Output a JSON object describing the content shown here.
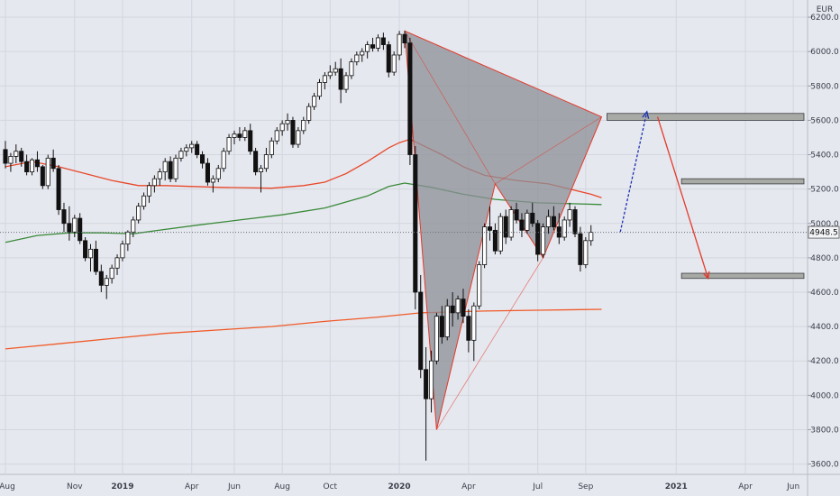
{
  "chart_data": {
    "type": "candlestick",
    "currency_label": "EUR",
    "last_price_label": "4948.5",
    "last_price": 4948.5,
    "ylim": [
      3540,
      6300
    ],
    "y_ticks": [
      3600,
      3800,
      4000,
      4200,
      4400,
      4600,
      4800,
      5000,
      5200,
      5400,
      5600,
      5800,
      6000,
      6200
    ],
    "y_tick_labels": [
      "3600.0",
      "3800.0",
      "4000.0",
      "4200.0",
      "4400.0",
      "4600.0",
      "4800.0",
      "5000.0",
      "5200.0",
      "5400.0",
      "5600.0",
      "5800.0",
      "6000.0",
      "6200.0"
    ],
    "x_ticks": [
      {
        "label": "Aug",
        "week": 0,
        "bold": false
      },
      {
        "label": "Nov",
        "week": 13,
        "bold": false
      },
      {
        "label": "2019",
        "week": 22,
        "bold": true
      },
      {
        "label": "Apr",
        "week": 35,
        "bold": false
      },
      {
        "label": "Jun",
        "week": 43,
        "bold": false
      },
      {
        "label": "Aug",
        "week": 52,
        "bold": false
      },
      {
        "label": "Oct",
        "week": 61,
        "bold": false
      },
      {
        "label": "2020",
        "week": 74,
        "bold": true
      },
      {
        "label": "Apr",
        "week": 87,
        "bold": false
      },
      {
        "label": "Jul",
        "week": 100,
        "bold": false
      },
      {
        "label": "Sep",
        "week": 109,
        "bold": false
      },
      {
        "label": "2021",
        "week": 126,
        "bold": true
      },
      {
        "label": "Apr",
        "week": 139,
        "bold": false
      },
      {
        "label": "Jun",
        "week": 148,
        "bold": false
      }
    ],
    "x_range_weeks": [
      0,
      150
    ],
    "candles": [
      [
        5430,
        5480,
        5320,
        5350
      ],
      [
        5350,
        5410,
        5300,
        5390
      ],
      [
        5390,
        5460,
        5350,
        5420
      ],
      [
        5420,
        5440,
        5330,
        5360
      ],
      [
        5360,
        5400,
        5280,
        5300
      ],
      [
        5300,
        5380,
        5280,
        5370
      ],
      [
        5370,
        5420,
        5300,
        5330
      ],
      [
        5330,
        5340,
        5200,
        5220
      ],
      [
        5220,
        5400,
        5200,
        5380
      ],
      [
        5380,
        5430,
        5300,
        5320
      ],
      [
        5320,
        5340,
        5050,
        5080
      ],
      [
        5080,
        5120,
        4950,
        5000
      ],
      [
        5000,
        5100,
        4900,
        4950
      ],
      [
        4950,
        5050,
        4920,
        5030
      ],
      [
        5030,
        5060,
        4880,
        4900
      ],
      [
        4900,
        4920,
        4780,
        4800
      ],
      [
        4800,
        4880,
        4720,
        4850
      ],
      [
        4850,
        4900,
        4700,
        4720
      ],
      [
        4720,
        4760,
        4600,
        4640
      ],
      [
        4640,
        4700,
        4560,
        4680
      ],
      [
        4680,
        4760,
        4650,
        4740
      ],
      [
        4740,
        4820,
        4700,
        4800
      ],
      [
        4800,
        4900,
        4780,
        4880
      ],
      [
        4880,
        4960,
        4840,
        4950
      ],
      [
        4950,
        5040,
        4920,
        5020
      ],
      [
        5020,
        5120,
        5000,
        5100
      ],
      [
        5100,
        5180,
        5080,
        5160
      ],
      [
        5160,
        5240,
        5120,
        5220
      ],
      [
        5220,
        5280,
        5180,
        5260
      ],
      [
        5260,
        5320,
        5220,
        5300
      ],
      [
        5300,
        5380,
        5250,
        5360
      ],
      [
        5360,
        5390,
        5240,
        5260
      ],
      [
        5260,
        5400,
        5240,
        5380
      ],
      [
        5380,
        5440,
        5360,
        5420
      ],
      [
        5420,
        5460,
        5390,
        5440
      ],
      [
        5440,
        5480,
        5410,
        5460
      ],
      [
        5460,
        5480,
        5380,
        5400
      ],
      [
        5400,
        5420,
        5320,
        5350
      ],
      [
        5350,
        5380,
        5220,
        5240
      ],
      [
        5240,
        5280,
        5180,
        5260
      ],
      [
        5260,
        5340,
        5240,
        5320
      ],
      [
        5320,
        5440,
        5300,
        5420
      ],
      [
        5420,
        5520,
        5400,
        5500
      ],
      [
        5500,
        5540,
        5460,
        5520
      ],
      [
        5520,
        5560,
        5480,
        5500
      ],
      [
        5500,
        5560,
        5480,
        5540
      ],
      [
        5540,
        5580,
        5400,
        5420
      ],
      [
        5420,
        5440,
        5280,
        5300
      ],
      [
        5300,
        5340,
        5180,
        5320
      ],
      [
        5320,
        5440,
        5300,
        5400
      ],
      [
        5400,
        5500,
        5380,
        5480
      ],
      [
        5480,
        5560,
        5460,
        5540
      ],
      [
        5540,
        5600,
        5510,
        5580
      ],
      [
        5580,
        5640,
        5540,
        5600
      ],
      [
        5600,
        5620,
        5440,
        5460
      ],
      [
        5460,
        5560,
        5440,
        5540
      ],
      [
        5540,
        5620,
        5520,
        5600
      ],
      [
        5600,
        5700,
        5580,
        5680
      ],
      [
        5680,
        5760,
        5660,
        5740
      ],
      [
        5740,
        5840,
        5720,
        5820
      ],
      [
        5820,
        5880,
        5780,
        5860
      ],
      [
        5860,
        5920,
        5840,
        5880
      ],
      [
        5880,
        5940,
        5860,
        5900
      ],
      [
        5900,
        5960,
        5700,
        5780
      ],
      [
        5780,
        5880,
        5760,
        5860
      ],
      [
        5860,
        5960,
        5840,
        5940
      ],
      [
        5940,
        6000,
        5920,
        5980
      ],
      [
        5980,
        6020,
        5940,
        6000
      ],
      [
        6000,
        6060,
        5960,
        6040
      ],
      [
        6040,
        6080,
        6000,
        6020
      ],
      [
        6020,
        6100,
        6000,
        6080
      ],
      [
        6080,
        6110,
        6010,
        6040
      ],
      [
        6040,
        6060,
        5850,
        5880
      ],
      [
        5880,
        6000,
        5860,
        5980
      ],
      [
        5980,
        6120,
        5950,
        6100
      ],
      [
        6100,
        6120,
        6020,
        6050
      ],
      [
        6050,
        6080,
        5340,
        5400
      ],
      [
        5400,
        5450,
        4500,
        4600
      ],
      [
        4600,
        4700,
        4100,
        4150
      ],
      [
        4150,
        4280,
        3620,
        3980
      ],
      [
        3980,
        4260,
        3900,
        4200
      ],
      [
        4200,
        4480,
        4180,
        4460
      ],
      [
        4460,
        4520,
        4300,
        4340
      ],
      [
        4340,
        4560,
        4320,
        4520
      ],
      [
        4520,
        4600,
        4400,
        4480
      ],
      [
        4480,
        4580,
        4440,
        4560
      ],
      [
        4560,
        4620,
        4420,
        4460
      ],
      [
        4460,
        4500,
        4250,
        4320
      ],
      [
        4320,
        4540,
        4200,
        4520
      ],
      [
        4520,
        4780,
        4500,
        4760
      ],
      [
        4760,
        5000,
        4740,
        4980
      ],
      [
        4980,
        5100,
        4900,
        4960
      ],
      [
        4960,
        5000,
        4820,
        4840
      ],
      [
        4840,
        5060,
        4820,
        5040
      ],
      [
        5040,
        5080,
        4880,
        4920
      ],
      [
        4920,
        5100,
        4900,
        5080
      ],
      [
        5080,
        5120,
        5000,
        5020
      ],
      [
        5020,
        5060,
        4920,
        4960
      ],
      [
        4960,
        5080,
        4940,
        5060
      ],
      [
        5060,
        5120,
        4980,
        5000
      ],
      [
        5000,
        5020,
        4780,
        4820
      ],
      [
        4820,
        5000,
        4800,
        4980
      ],
      [
        4980,
        5080,
        4940,
        5040
      ],
      [
        5040,
        5100,
        4960,
        4980
      ],
      [
        4980,
        5060,
        4880,
        4920
      ],
      [
        4920,
        5040,
        4900,
        5020
      ],
      [
        5020,
        5120,
        4980,
        5080
      ],
      [
        5080,
        5100,
        4920,
        4940
      ],
      [
        4940,
        4980,
        4720,
        4760
      ],
      [
        4760,
        4920,
        4740,
        4900
      ],
      [
        4900,
        4990,
        4870,
        4948.5
      ]
    ],
    "series": [
      {
        "style": "line",
        "color": "#e8482a",
        "points": [
          [
            0,
            5330
          ],
          [
            5,
            5360
          ],
          [
            10,
            5330
          ],
          [
            15,
            5290
          ],
          [
            20,
            5250
          ],
          [
            25,
            5220
          ],
          [
            30,
            5220
          ],
          [
            40,
            5210
          ],
          [
            50,
            5205
          ],
          [
            56,
            5220
          ],
          [
            60,
            5240
          ],
          [
            64,
            5290
          ],
          [
            68,
            5360
          ],
          [
            72,
            5440
          ],
          [
            74,
            5470
          ],
          [
            76,
            5490
          ],
          [
            78,
            5460
          ],
          [
            82,
            5400
          ],
          [
            86,
            5330
          ],
          [
            90,
            5280
          ],
          [
            96,
            5250
          ],
          [
            102,
            5230
          ],
          [
            106,
            5200
          ],
          [
            110,
            5170
          ],
          [
            112,
            5150
          ]
        ]
      },
      {
        "style": "line",
        "color": "#3a8a3a",
        "points": [
          [
            0,
            4890
          ],
          [
            6,
            4930
          ],
          [
            12,
            4945
          ],
          [
            18,
            4945
          ],
          [
            24,
            4940
          ],
          [
            30,
            4965
          ],
          [
            36,
            4990
          ],
          [
            44,
            5020
          ],
          [
            52,
            5050
          ],
          [
            60,
            5090
          ],
          [
            68,
            5160
          ],
          [
            72,
            5215
          ],
          [
            75,
            5235
          ],
          [
            80,
            5210
          ],
          [
            86,
            5170
          ],
          [
            92,
            5140
          ],
          [
            100,
            5120
          ],
          [
            106,
            5115
          ],
          [
            112,
            5110
          ]
        ]
      },
      {
        "style": "line",
        "color": "#f05a28",
        "points": [
          [
            0,
            4270
          ],
          [
            10,
            4300
          ],
          [
            20,
            4330
          ],
          [
            30,
            4360
          ],
          [
            40,
            4380
          ],
          [
            50,
            4400
          ],
          [
            60,
            4430
          ],
          [
            70,
            4455
          ],
          [
            78,
            4480
          ],
          [
            90,
            4490
          ],
          [
            100,
            4495
          ],
          [
            112,
            4500
          ]
        ]
      }
    ],
    "patterns": [
      {
        "type": "polygon",
        "fill": "#8c8f97",
        "stroke": "#e33a2a",
        "points": [
          [
            75,
            6120
          ],
          [
            81,
            3800
          ],
          [
            92,
            5230
          ],
          [
            101,
            4800
          ],
          [
            112,
            5620
          ]
        ]
      }
    ],
    "zones": [
      {
        "from_week": 113,
        "to_week": 150,
        "low": 5600,
        "high": 5640
      },
      {
        "from_week": 127,
        "to_week": 150,
        "low": 5230,
        "high": 5260
      },
      {
        "from_week": 127,
        "to_week": 150,
        "low": 4680,
        "high": 4710
      }
    ],
    "arrows": [
      {
        "color": "#1a2fb0",
        "dashed": true,
        "from": [
          115.5,
          4950
        ],
        "to": [
          120.5,
          5650
        ]
      },
      {
        "color": "#e33a2a",
        "dashed": false,
        "from": [
          122.5,
          5620
        ],
        "to": [
          132,
          4680
        ]
      }
    ]
  }
}
